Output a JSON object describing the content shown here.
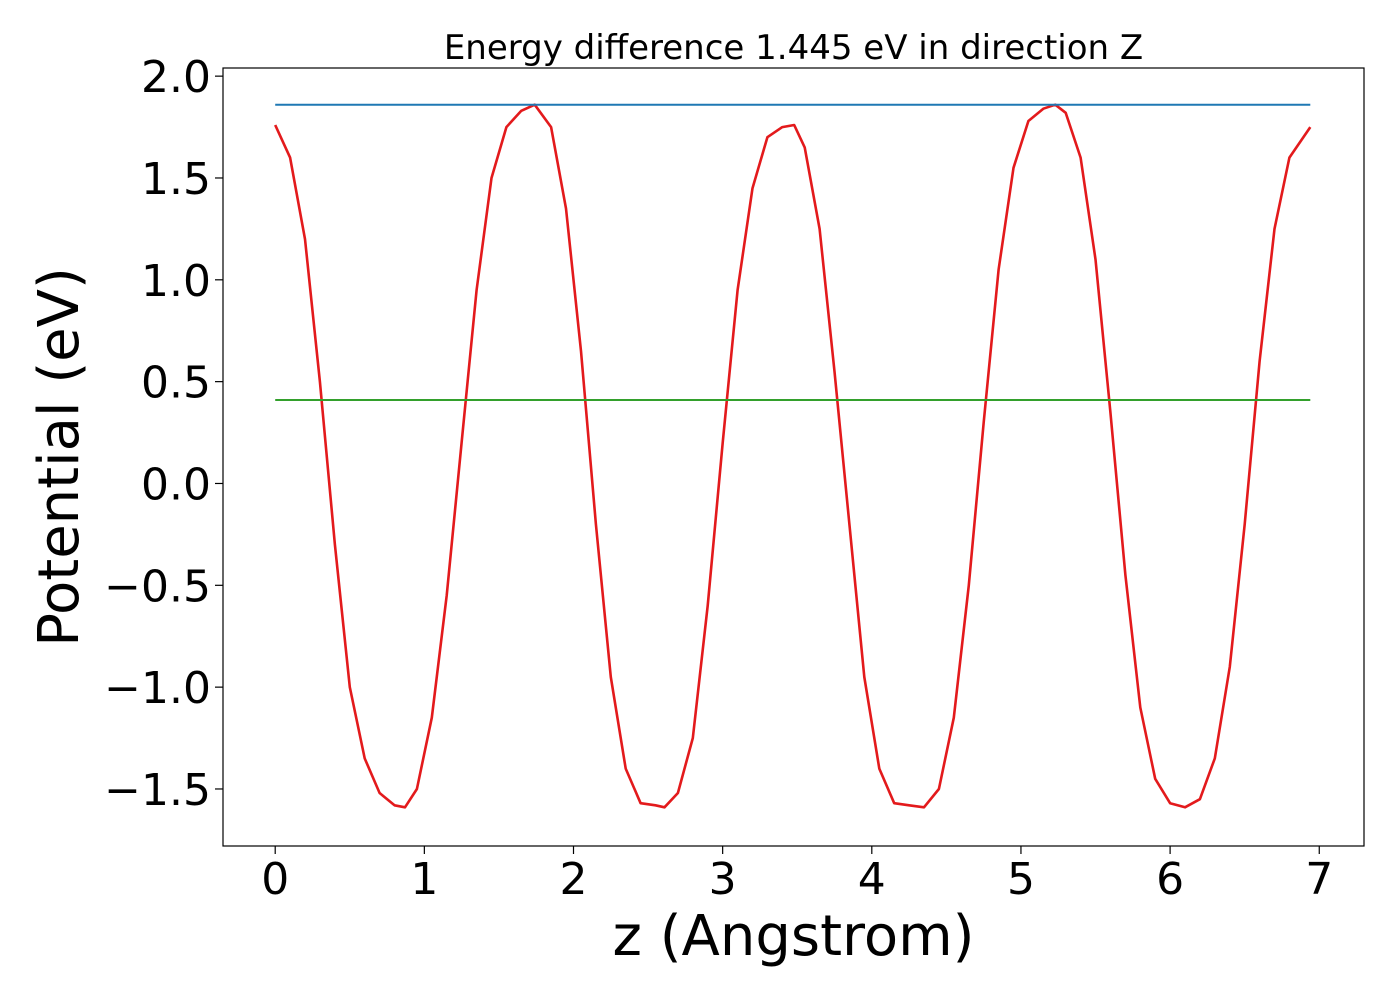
{
  "chart_data": {
    "type": "line",
    "title": "Energy difference 1.445 eV in direction Z",
    "xlabel": "z (Angstrom)",
    "ylabel": "Potential (eV)",
    "xlim": [
      -0.35,
      7.3
    ],
    "ylim": [
      -1.78,
      2.04
    ],
    "x_ticks": [
      0,
      1,
      2,
      3,
      4,
      5,
      6,
      7
    ],
    "x_tick_labels": [
      "0",
      "1",
      "2",
      "3",
      "4",
      "5",
      "6",
      "7"
    ],
    "y_ticks": [
      -1.5,
      -1.0,
      -0.5,
      0.0,
      0.5,
      1.0,
      1.5,
      2.0
    ],
    "y_tick_labels": [
      "−1.5",
      "−1.0",
      "−0.5",
      "0.0",
      "0.5",
      "1.0",
      "1.5",
      "2.0"
    ],
    "grid": false,
    "series": [
      {
        "color": "#e31a1c",
        "x": [
          0,
          0.1,
          0.2,
          0.3,
          0.4,
          0.5,
          0.6,
          0.7,
          0.8,
          0.87,
          0.95,
          1.05,
          1.15,
          1.25,
          1.35,
          1.45,
          1.55,
          1.65,
          1.74,
          1.85,
          1.95,
          2.05,
          2.15,
          2.25,
          2.35,
          2.45,
          2.55,
          2.61,
          2.7,
          2.8,
          2.9,
          3.0,
          3.1,
          3.2,
          3.3,
          3.4,
          3.48,
          3.55,
          3.65,
          3.75,
          3.85,
          3.95,
          4.05,
          4.15,
          4.25,
          4.35,
          4.45,
          4.55,
          4.65,
          4.75,
          4.85,
          4.95,
          5.05,
          5.15,
          5.23,
          5.3,
          5.4,
          5.5,
          5.6,
          5.7,
          5.8,
          5.9,
          6.0,
          6.1,
          6.2,
          6.3,
          6.4,
          6.5,
          6.6,
          6.7,
          6.8,
          6.94
        ],
        "y": [
          1.76,
          1.6,
          1.2,
          0.5,
          -0.3,
          -1.0,
          -1.35,
          -1.52,
          -1.58,
          -1.59,
          -1.5,
          -1.15,
          -0.55,
          0.2,
          0.95,
          1.5,
          1.75,
          1.83,
          1.86,
          1.75,
          1.35,
          0.65,
          -0.2,
          -0.95,
          -1.4,
          -1.57,
          -1.58,
          -1.59,
          -1.52,
          -1.25,
          -0.6,
          0.2,
          0.95,
          1.45,
          1.7,
          1.75,
          1.76,
          1.65,
          1.25,
          0.55,
          -0.2,
          -0.95,
          -1.4,
          -1.57,
          -1.58,
          -1.59,
          -1.5,
          -1.15,
          -0.5,
          0.3,
          1.05,
          1.55,
          1.78,
          1.84,
          1.86,
          1.82,
          1.6,
          1.1,
          0.35,
          -0.45,
          -1.1,
          -1.45,
          -1.57,
          -1.59,
          -1.55,
          -1.35,
          -0.9,
          -0.2,
          0.6,
          1.25,
          1.6,
          1.75
        ]
      },
      {
        "color": "#1f78b4",
        "x": [
          0,
          6.94
        ],
        "y": [
          1.86,
          1.86
        ]
      },
      {
        "color": "#33a02c",
        "x": [
          0,
          6.94
        ],
        "y": [
          0.41,
          0.41
        ]
      }
    ]
  }
}
